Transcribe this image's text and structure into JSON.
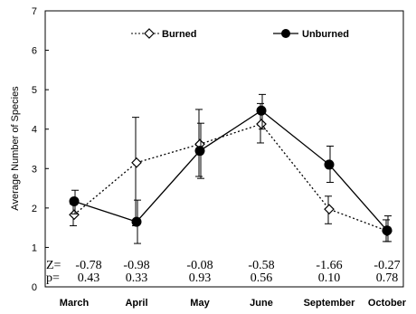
{
  "chart_data": {
    "type": "line",
    "title": "",
    "xlabel": "",
    "ylabel": "Average Number of Species",
    "ylim": [
      0,
      7
    ],
    "yticks": [
      "0",
      "1",
      "2",
      "3",
      "4",
      "5",
      "6",
      "7"
    ],
    "categories": [
      "March",
      "April",
      "May",
      "June",
      "September",
      "October"
    ],
    "legend_position": "top",
    "series": [
      {
        "name": "Burned",
        "marker": "open-diamond",
        "line_style": "dotted",
        "color": "#000000",
        "values": [
          1.83,
          3.15,
          3.62,
          4.13,
          1.97,
          1.42
        ],
        "err_low": [
          1.55,
          1.55,
          2.8,
          3.65,
          1.6,
          1.15
        ],
        "err_high": [
          2.1,
          4.3,
          4.5,
          4.65,
          2.3,
          1.7
        ]
      },
      {
        "name": "Unburned",
        "marker": "filled-circle",
        "line_style": "solid",
        "color": "#000000",
        "values": [
          2.17,
          1.65,
          3.45,
          4.47,
          3.1,
          1.43
        ],
        "err_low": [
          1.85,
          1.1,
          2.75,
          4.0,
          2.65,
          1.15
        ],
        "err_high": [
          2.45,
          2.2,
          4.15,
          4.88,
          3.57,
          1.8
        ]
      }
    ],
    "annotations": {
      "z_prefix": "Z=",
      "p_prefix": "p=",
      "z": [
        "-0.78",
        "-0.98",
        "-0.08",
        "-0.58",
        "-1.66",
        "-0.27"
      ],
      "p": [
        "0.43",
        "0.33",
        "0.93",
        "0.56",
        "0.10",
        "0.78"
      ]
    }
  }
}
